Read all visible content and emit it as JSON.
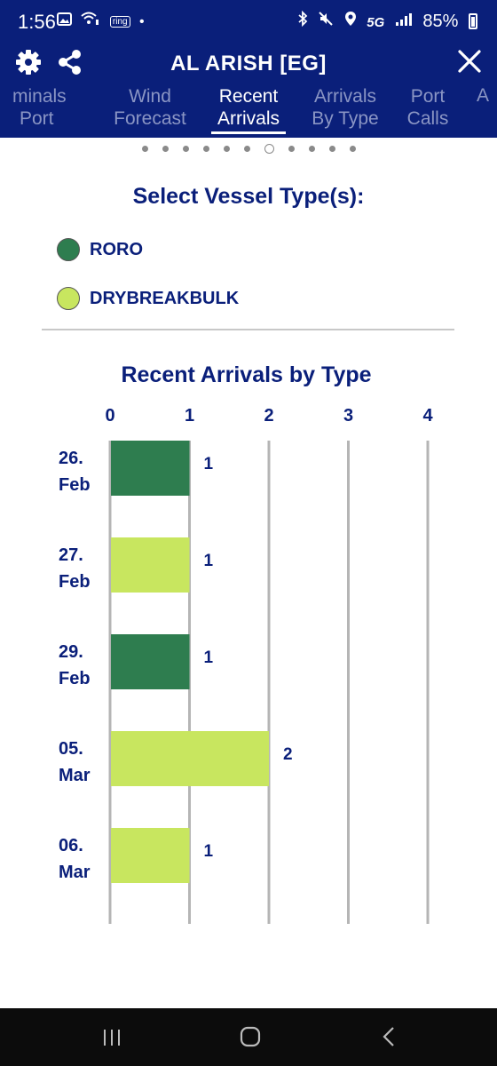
{
  "status_bar": {
    "time": "1:56",
    "notification_icons": [
      "image-icon",
      "wifi-calling-icon",
      "ring-app-icon",
      "dot-icon"
    ],
    "ring_label": "ring",
    "network": "5G",
    "battery": "85%",
    "battery_fraction": 0.85
  },
  "app_bar": {
    "title": "AL ARISH [EG]",
    "icons": [
      "gear-icon",
      "share-icon",
      "close-icon"
    ]
  },
  "tabs": [
    {
      "line1": "minals",
      "line2": "Port"
    },
    {
      "line1": "Wind",
      "line2": "Forecast"
    },
    {
      "line1": "Recent",
      "line2": "Arrivals"
    },
    {
      "line1": "Arrivals",
      "line2": "By Type"
    },
    {
      "line1": "Port",
      "line2": "Calls"
    },
    {
      "line1": "A",
      "line2": ""
    }
  ],
  "active_tab_index": 2,
  "pager": {
    "count": 11,
    "active": 6
  },
  "vessel_select": {
    "title": "Select Vessel Type(s):",
    "types": [
      {
        "label": "RORO",
        "color": "#2e7d4f"
      },
      {
        "label": "DRYBREAKBULK",
        "color": "#c8e65f"
      }
    ]
  },
  "colors": {
    "brand_navy": "#0a1f7a",
    "roro_green": "#2e7d4f",
    "drybreakbulk_green": "#c8e65f"
  },
  "chart_data": {
    "type": "bar",
    "orientation": "horizontal",
    "title": "Recent Arrivals by Type",
    "categories": [
      [
        "26.",
        "Feb"
      ],
      [
        "27.",
        "Feb"
      ],
      [
        "29.",
        "Feb"
      ],
      [
        "05.",
        "Mar"
      ],
      [
        "06.",
        "Mar"
      ]
    ],
    "values": [
      1,
      1,
      1,
      2,
      1
    ],
    "value_labels": [
      "1",
      "1",
      "1",
      "2",
      "1"
    ],
    "bar_types": [
      "RORO",
      "DRYBREAKBULK",
      "RORO",
      "DRYBREAKBULK",
      "DRYBREAKBULK"
    ],
    "xlim": [
      0,
      4
    ],
    "x_ticks": [
      "0",
      "1",
      "2",
      "3",
      "4"
    ],
    "grid": true,
    "xlabel": "",
    "ylabel": ""
  },
  "nav_bar": {
    "buttons": [
      "recent-apps-icon",
      "home-icon",
      "back-icon"
    ]
  }
}
